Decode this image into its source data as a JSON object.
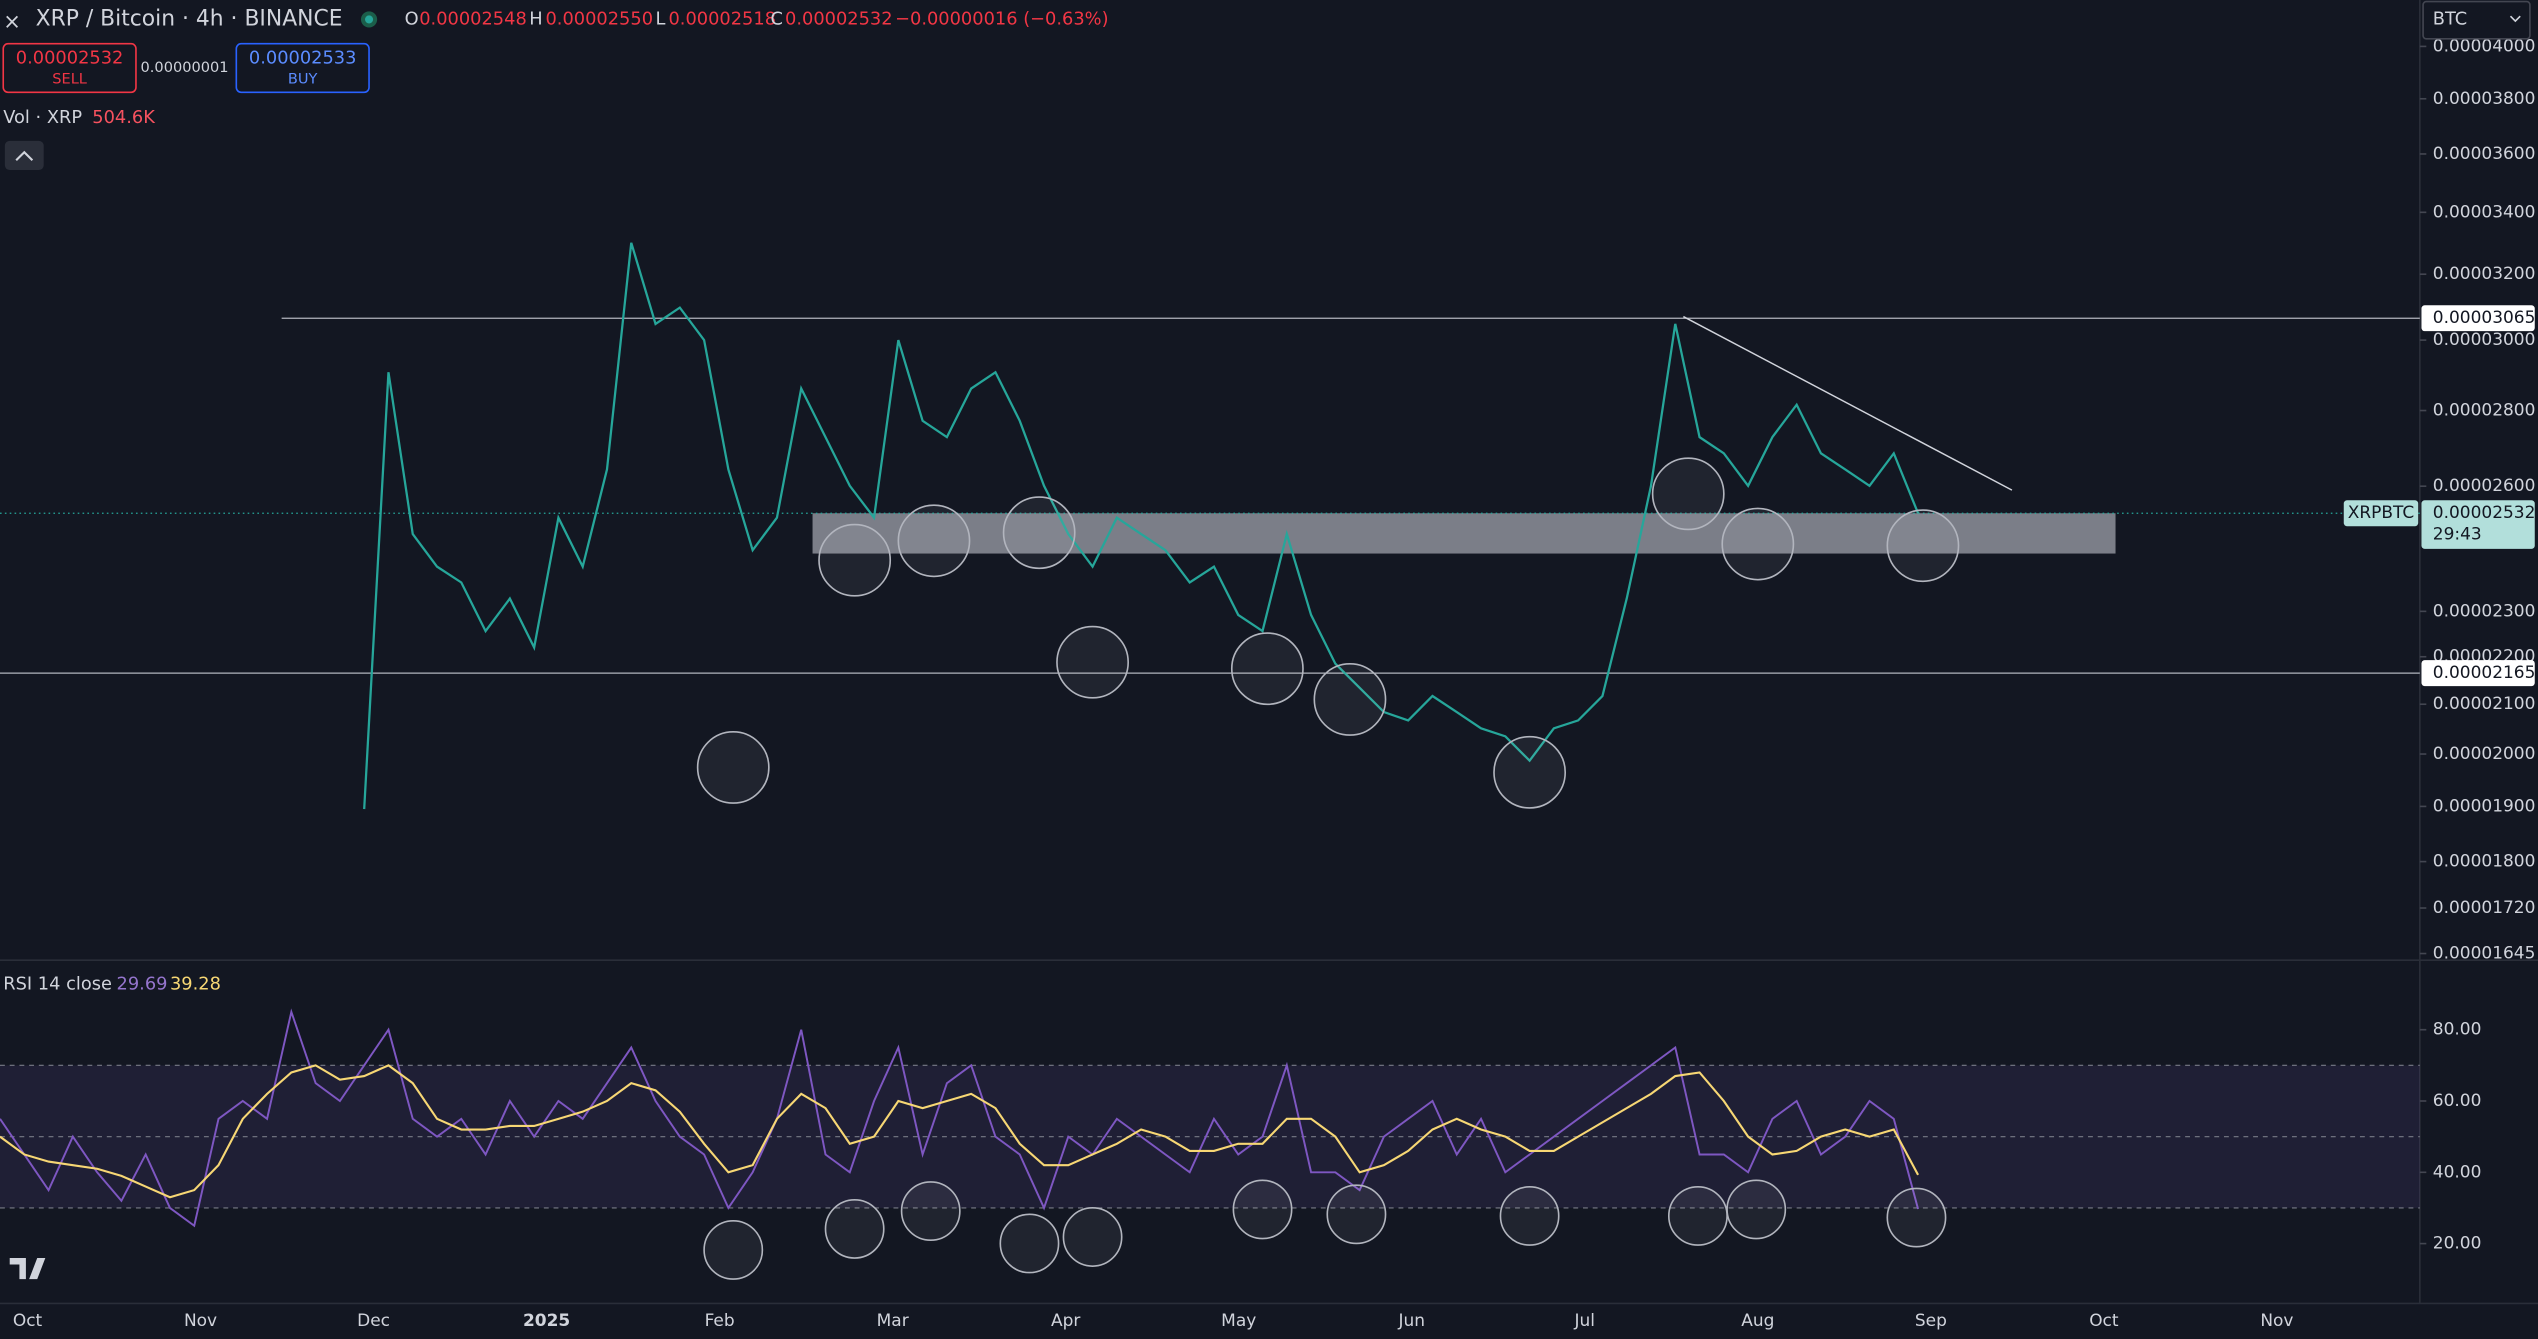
{
  "ui": {
    "symbol": "XRP / Bitcoin · 4h · BINANCE",
    "ohlc": [
      {
        "key": "O",
        "value": "0.00002548"
      },
      {
        "key": "H",
        "value": "0.00002550"
      },
      {
        "key": "L",
        "value": "0.00002518"
      },
      {
        "key": "C",
        "value": "0.00002532"
      }
    ],
    "change": "−0.00000016 (−0.63%)",
    "sell": {
      "price": "0.00002532",
      "label": "SELL"
    },
    "spread": "0.00000001",
    "buy": {
      "price": "0.00002533",
      "label": "BUY"
    },
    "volume": {
      "label": "Vol · XRP",
      "value": "504.6K"
    },
    "rsi_label": "RSI 14 close",
    "currency": "BTC",
    "symbol_tag": "XRPBTC",
    "countdown": "29:43"
  },
  "chart_data": [
    {
      "type": "line",
      "log_scale": true,
      "color": "#26a69a",
      "ylim": [
        1.637e-05,
        4.186e-05
      ],
      "yticks": [
        {
          "value": 4e-05,
          "label": "0.00004000"
        },
        {
          "value": 3.8e-05,
          "label": "0.00003800"
        },
        {
          "value": 3.6e-05,
          "label": "0.00003600"
        },
        {
          "value": 3.4e-05,
          "label": "0.00003400"
        },
        {
          "value": 3.2e-05,
          "label": "0.00003200"
        },
        {
          "value": 3e-05,
          "label": "0.00003000"
        },
        {
          "value": 2.8e-05,
          "label": "0.00002800"
        },
        {
          "value": 2.6e-05,
          "label": "0.00002600"
        },
        {
          "value": 2.3e-05,
          "label": "0.00002300"
        },
        {
          "value": 2.2e-05,
          "label": "0.00002200"
        },
        {
          "value": 2.1e-05,
          "label": "0.00002100"
        },
        {
          "value": 2e-05,
          "label": "0.00002000"
        },
        {
          "value": 1.9e-05,
          "label": "0.00001900"
        },
        {
          "value": 1.8e-05,
          "label": "0.00001800"
        },
        {
          "value": 1.72e-05,
          "label": "0.00001720"
        },
        {
          "value": 1.645e-05,
          "label": "0.00001645"
        }
      ],
      "time_labels": [
        "Oct",
        "Nov",
        "Dec",
        "2025",
        "Feb",
        "Mar",
        "Apr",
        "May",
        "Jun",
        "Jul",
        "Aug",
        "Sep",
        "Oct",
        "Nov"
      ],
      "series": [
        {
          "name": "XRPBTC",
          "color": "#26a69a",
          "values": [
            1.895e-05,
            2.907e-05,
            2.481e-05,
            2.403e-05,
            2.366e-05,
            2.256e-05,
            2.329e-05,
            2.22e-05,
            2.521e-05,
            2.403e-05,
            2.643e-05,
            3.3e-05,
            3.048e-05,
            3.097e-05,
            3e-05,
            2.643e-05,
            2.442e-05,
            2.521e-05,
            2.861e-05,
            2.728e-05,
            2.601e-05,
            2.521e-05,
            3e-05,
            2.772e-05,
            2.728e-05,
            2.861e-05,
            2.907e-05,
            2.772e-05,
            2.601e-05,
            2.481e-05,
            2.403e-05,
            2.521e-05,
            2.481e-05,
            2.442e-05,
            2.366e-05,
            2.403e-05,
            2.292e-05,
            2.256e-05,
            2.481e-05,
            2.292e-05,
            2.185e-05,
            2.134e-05,
            2.084e-05,
            2.067e-05,
            2.117e-05,
            2.084e-05,
            2.051e-05,
            2.035e-05,
            1.987e-05,
            2.051e-05,
            2.067e-05,
            2.117e-05,
            2.329e-05,
            2.601e-05,
            3.048e-05,
            2.728e-05,
            2.685e-05,
            2.601e-05,
            2.728e-05,
            2.816e-05,
            2.685e-05,
            2.643e-05,
            2.601e-05,
            2.685e-05,
            2.532e-05
          ]
        }
      ],
      "levels": [
        3.065e-05,
        2.165e-05
      ],
      "zone": [
        2.532e-05,
        2.434e-05
      ],
      "trendline": [
        3.07e-05,
        2.59e-05
      ]
    },
    {
      "type": "line",
      "ylim": [
        5.5,
        97.7
      ],
      "yticks": [
        {
          "value": 80,
          "label": "80.00"
        },
        {
          "value": 60,
          "label": "60.00"
        },
        {
          "value": 40,
          "label": "40.00"
        },
        {
          "value": 20,
          "label": "20.00"
        }
      ],
      "band": [
        30,
        70
      ],
      "midline": 50,
      "series": [
        {
          "name": "RSI",
          "color": "#7e57c2",
          "values": [
            55,
            45,
            35,
            50,
            40,
            32,
            45,
            30,
            25,
            55,
            60,
            55,
            85,
            65,
            60,
            70,
            80,
            55,
            50,
            55,
            45,
            60,
            50,
            60,
            55,
            65,
            75,
            60,
            50,
            45,
            30,
            40,
            55,
            80,
            45,
            40,
            60,
            75,
            45,
            65,
            70,
            50,
            45,
            30,
            50,
            45,
            55,
            50,
            45,
            40,
            55,
            45,
            50,
            70,
            40,
            40,
            35,
            50,
            55,
            60,
            45,
            55,
            40,
            45,
            50,
            55,
            60,
            65,
            70,
            75,
            45,
            45,
            40,
            55,
            60,
            45,
            50,
            60,
            55,
            29.69
          ]
        },
        {
          "name": "RSI MA",
          "color": "#f7d774",
          "values": [
            50,
            45,
            43,
            42,
            41,
            39,
            36,
            33,
            35,
            42,
            55,
            62,
            68,
            70,
            66,
            67,
            70,
            65,
            55,
            52,
            52,
            53,
            53,
            55,
            57,
            60,
            65,
            63,
            57,
            48,
            40,
            42,
            55,
            62,
            58,
            48,
            50,
            60,
            58,
            60,
            62,
            58,
            48,
            42,
            42,
            45,
            48,
            52,
            50,
            46,
            46,
            48,
            48,
            55,
            55,
            50,
            40,
            42,
            46,
            52,
            55,
            52,
            50,
            46,
            46,
            50,
            54,
            58,
            62,
            67,
            68,
            60,
            50,
            45,
            46,
            50,
            52,
            50,
            52,
            39.28
          ]
        }
      ]
    }
  ]
}
